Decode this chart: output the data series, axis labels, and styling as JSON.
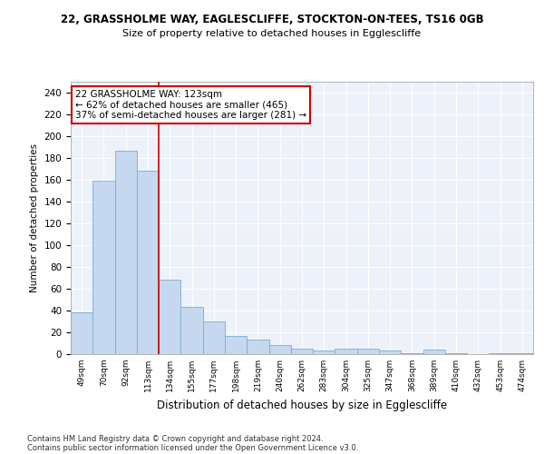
{
  "title1": "22, GRASSHOLME WAY, EAGLESCLIFFE, STOCKTON-ON-TEES, TS16 0GB",
  "title2": "Size of property relative to detached houses in Egglescliffe",
  "xlabel": "Distribution of detached houses by size in Egglescliffe",
  "ylabel": "Number of detached properties",
  "categories": [
    "49sqm",
    "70sqm",
    "92sqm",
    "113sqm",
    "134sqm",
    "155sqm",
    "177sqm",
    "198sqm",
    "219sqm",
    "240sqm",
    "262sqm",
    "283sqm",
    "304sqm",
    "325sqm",
    "347sqm",
    "368sqm",
    "389sqm",
    "410sqm",
    "432sqm",
    "453sqm",
    "474sqm"
  ],
  "values": [
    38,
    159,
    187,
    168,
    68,
    43,
    30,
    17,
    13,
    8,
    5,
    3,
    5,
    5,
    3,
    1,
    4,
    1,
    0,
    1,
    1
  ],
  "bar_color": "#c5d8f0",
  "bar_edge_color": "#7aadd4",
  "vline_x": 3.5,
  "vline_color": "#cc0000",
  "annotation_line1": "22 GRASSHOLME WAY: 123sqm",
  "annotation_line2": "← 62% of detached houses are smaller (465)",
  "annotation_line3": "37% of semi-detached houses are larger (281) →",
  "annotation_box_color": "#ffffff",
  "annotation_box_edge": "#cc0000",
  "bg_color": "#edf2fa",
  "grid_color": "#ffffff",
  "footer1": "Contains HM Land Registry data © Crown copyright and database right 2024.",
  "footer2": "Contains public sector information licensed under the Open Government Licence v3.0.",
  "ylim": [
    0,
    250
  ],
  "yticks": [
    0,
    20,
    40,
    60,
    80,
    100,
    120,
    140,
    160,
    180,
    200,
    220,
    240
  ]
}
